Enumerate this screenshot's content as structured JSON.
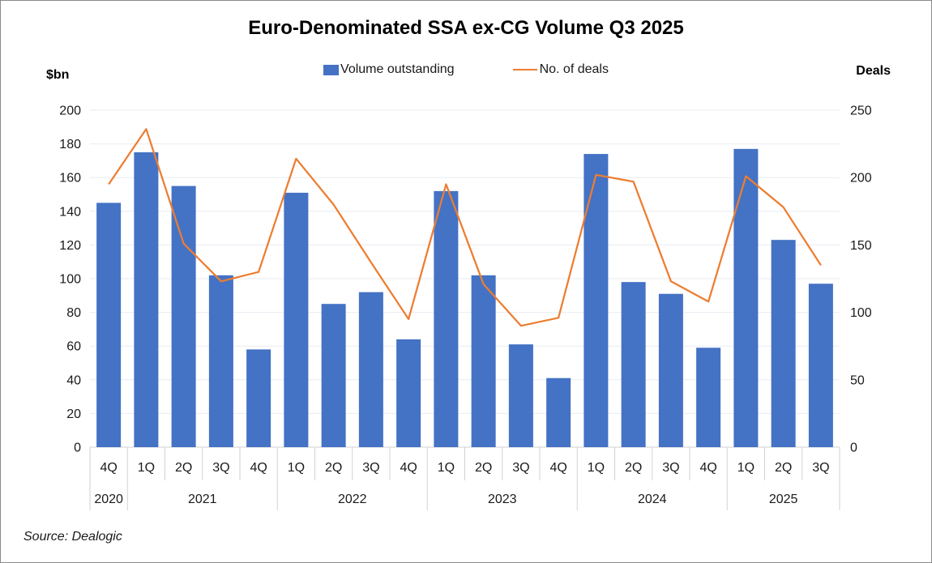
{
  "title": "Euro-Denominated SSA ex-CG Volume Q3 2025",
  "axis_titles": {
    "left": "$bn",
    "right": "Deals"
  },
  "legend": {
    "items": [
      {
        "label": "Volume outstanding",
        "type": "bar",
        "color": "#4472C4"
      },
      {
        "label": "No. of deals",
        "type": "line",
        "color": "#ED7D31"
      }
    ]
  },
  "source": "Source: Dealogic",
  "chart_data": {
    "type": "bar+line combo",
    "title": "Euro-Denominated SSA ex-CG Volume Q3 2025",
    "categories": [
      "4Q",
      "1Q",
      "2Q",
      "3Q",
      "4Q",
      "1Q",
      "2Q",
      "3Q",
      "4Q",
      "1Q",
      "2Q",
      "3Q",
      "4Q",
      "1Q",
      "2Q",
      "3Q",
      "4Q",
      "1Q",
      "2Q",
      "3Q"
    ],
    "year_groups": [
      {
        "year": "2020",
        "count": 1
      },
      {
        "year": "2021",
        "count": 4
      },
      {
        "year": "2022",
        "count": 4
      },
      {
        "year": "2023",
        "count": 4
      },
      {
        "year": "2024",
        "count": 4
      },
      {
        "year": "2025",
        "count": 3
      }
    ],
    "series": [
      {
        "name": "Volume outstanding",
        "type": "bar",
        "axis": "left",
        "color": "#4472C4",
        "values": [
          145,
          175,
          155,
          102,
          58,
          151,
          85,
          92,
          64,
          152,
          102,
          61,
          41,
          174,
          98,
          91,
          59,
          177,
          123,
          97
        ]
      },
      {
        "name": "No. of deals",
        "type": "line",
        "axis": "right",
        "color": "#ED7D31",
        "values": [
          195,
          236,
          151,
          123,
          130,
          214,
          180,
          137,
          95,
          195,
          121,
          90,
          96,
          202,
          197,
          123,
          108,
          201,
          178,
          135
        ]
      }
    ],
    "left_axis": {
      "title": "$bn",
      "min": 0,
      "max": 200,
      "step": 20,
      "ticks": [
        0,
        20,
        40,
        60,
        80,
        100,
        120,
        140,
        160,
        180,
        200
      ]
    },
    "right_axis": {
      "title": "Deals",
      "min": 0,
      "max": 250,
      "step": 50,
      "ticks": [
        0,
        50,
        100,
        150,
        200,
        250
      ]
    },
    "grid": true,
    "legend_position": "top"
  }
}
